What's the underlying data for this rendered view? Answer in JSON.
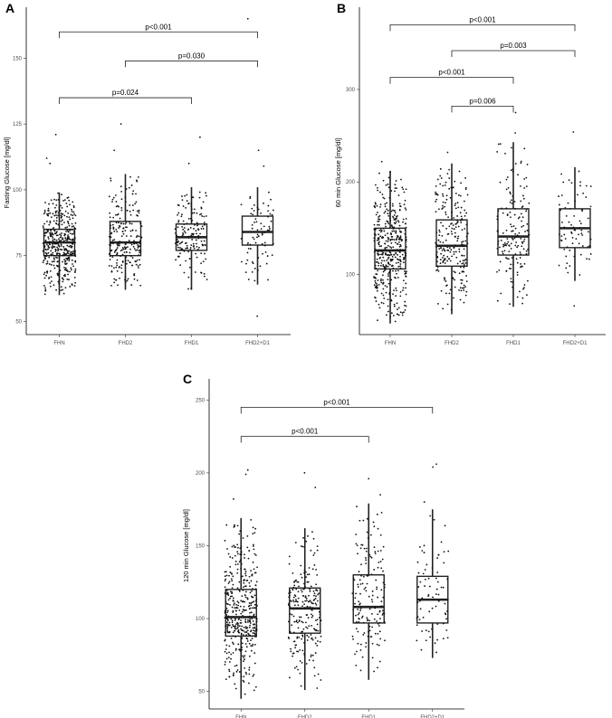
{
  "chart_data": [
    {
      "panel": "A",
      "type": "box",
      "categories": [
        "FHN",
        "FHD2",
        "FHD1",
        "FHD2+D1"
      ],
      "ylabel": "Fasting Glucose [mg/dl]",
      "ylim": [
        45,
        168
      ],
      "yticks": [
        50,
        75,
        100,
        125,
        150
      ],
      "grid": false,
      "boxes": [
        {
          "category": "FHN",
          "min": 60,
          "q1": 75,
          "median": 80,
          "q3": 85,
          "max": 99
        },
        {
          "category": "FHD2",
          "min": 62,
          "q1": 75,
          "median": 80,
          "q3": 88,
          "max": 106
        },
        {
          "category": "FHD1",
          "min": 62,
          "q1": 77,
          "median": 82,
          "q3": 87,
          "max": 101
        },
        {
          "category": "FHD2+D1",
          "min": 64,
          "q1": 79,
          "median": 84,
          "q3": 90,
          "max": 101
        }
      ],
      "points": {
        "n": [
          420,
          230,
          160,
          75
        ],
        "outliers": [
          {
            "category": "FHN",
            "values": [
              110,
              112,
              121
            ]
          },
          {
            "category": "FHD2",
            "values": [
              115,
              125
            ]
          },
          {
            "category": "FHD1",
            "values": [
              110,
              120
            ]
          },
          {
            "category": "FHD2+D1",
            "values": [
              52,
              109,
              115,
              165
            ]
          }
        ]
      },
      "comparisons": [
        {
          "from": "FHN",
          "to": "FHD2+D1",
          "label": "p<0.001",
          "y": 160
        },
        {
          "from": "FHD2",
          "to": "FHD2+D1",
          "label": "p=0.030",
          "y": 149
        },
        {
          "from": "FHN",
          "to": "FHD1",
          "label": "p=0.024",
          "y": 135
        }
      ]
    },
    {
      "panel": "B",
      "type": "box",
      "categories": [
        "FHN",
        "FHD2",
        "FHD1",
        "FHD2+D1"
      ],
      "ylabel": "60 min Glucose [mg/dl]",
      "ylim": [
        35,
        385
      ],
      "yticks": [
        100,
        200,
        300
      ],
      "grid": false,
      "boxes": [
        {
          "category": "FHN",
          "min": 47,
          "q1": 106,
          "median": 126,
          "q3": 150,
          "max": 212
        },
        {
          "category": "FHD2",
          "min": 57,
          "q1": 109,
          "median": 131,
          "q3": 159,
          "max": 220
        },
        {
          "category": "FHD1",
          "min": 65,
          "q1": 121,
          "median": 141,
          "q3": 171,
          "max": 243
        },
        {
          "category": "FHD2+D1",
          "min": 93,
          "q1": 129,
          "median": 150,
          "q3": 171,
          "max": 216
        }
      ],
      "points": {
        "n": [
          420,
          230,
          160,
          75
        ],
        "outliers": [
          {
            "category": "FHN",
            "values": [
              222
            ]
          },
          {
            "category": "FHD2",
            "values": [
              232
            ]
          },
          {
            "category": "FHD1",
            "values": [
              253,
              275
            ]
          },
          {
            "category": "FHD2+D1",
            "values": [
              66,
              254
            ]
          }
        ]
      },
      "comparisons": [
        {
          "from": "FHN",
          "to": "FHD2+D1",
          "label": "p<0.001",
          "y": 370
        },
        {
          "from": "FHD2",
          "to": "FHD2+D1",
          "label": "p=0.003",
          "y": 342
        },
        {
          "from": "FHN",
          "to": "FHD1",
          "label": "p<0.001",
          "y": 313
        },
        {
          "from": "FHD2",
          "to": "FHD1",
          "label": "p=0.006",
          "y": 282
        }
      ]
    },
    {
      "panel": "C",
      "type": "box",
      "categories": [
        "FHN",
        "FHD2",
        "FHD1",
        "FHD2+D1"
      ],
      "ylabel": "120 min Glucose [mg/dl]",
      "ylim": [
        38,
        262
      ],
      "yticks": [
        50,
        100,
        150,
        200,
        250
      ],
      "grid": false,
      "boxes": [
        {
          "category": "FHN",
          "min": 45,
          "q1": 88,
          "median": 101,
          "q3": 120,
          "max": 169
        },
        {
          "category": "FHD2",
          "min": 51,
          "q1": 90,
          "median": 107,
          "q3": 121,
          "max": 162
        },
        {
          "category": "FHD1",
          "min": 58,
          "q1": 97,
          "median": 108,
          "q3": 130,
          "max": 179
        },
        {
          "category": "FHD2+D1",
          "min": 73,
          "q1": 97,
          "median": 113,
          "q3": 129,
          "max": 175
        }
      ],
      "points": {
        "n": [
          420,
          230,
          160,
          75
        ],
        "outliers": [
          {
            "category": "FHN",
            "values": [
              182,
              199,
              202
            ]
          },
          {
            "category": "FHD2",
            "values": [
              190,
              200
            ]
          },
          {
            "category": "FHD1",
            "values": [
              185,
              196
            ]
          },
          {
            "category": "FHD2+D1",
            "values": [
              180,
              204,
              206
            ]
          }
        ]
      },
      "comparisons": [
        {
          "from": "FHN",
          "to": "FHD2+D1",
          "label": "p<0.001",
          "y": 245
        },
        {
          "from": "FHN",
          "to": "FHD1",
          "label": "p<0.001",
          "y": 225
        }
      ]
    }
  ]
}
